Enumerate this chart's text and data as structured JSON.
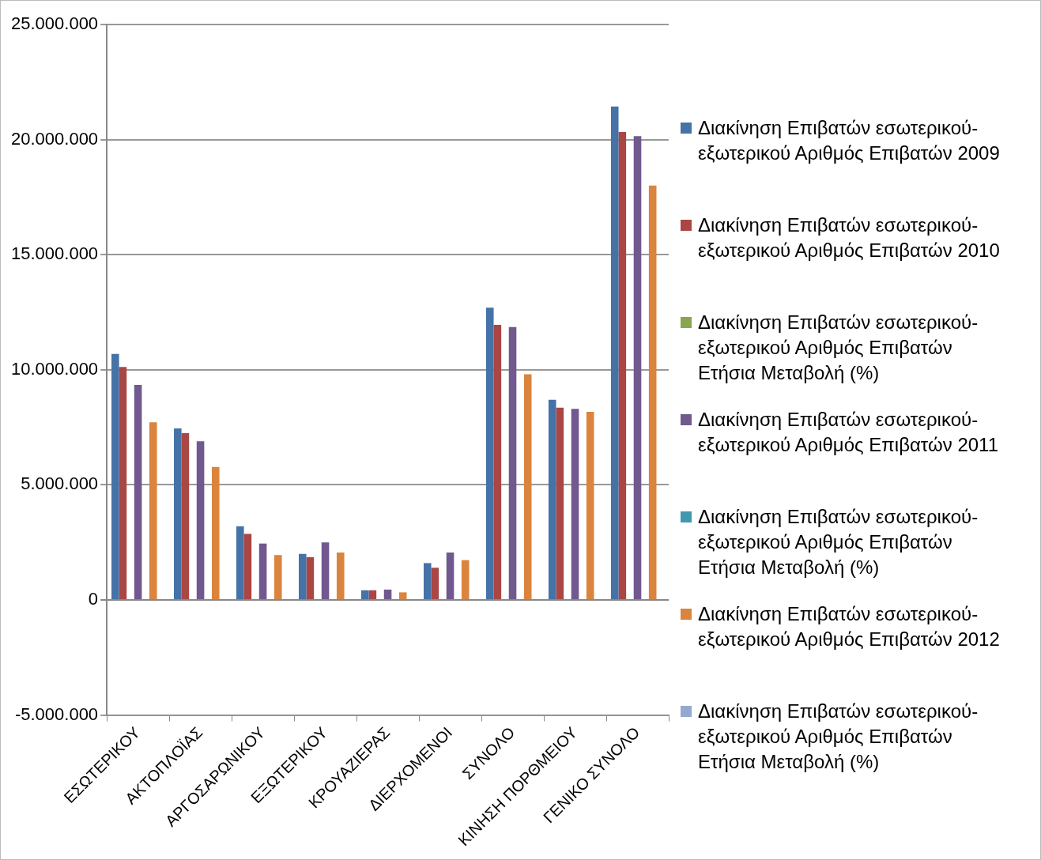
{
  "chart_data": {
    "type": "bar",
    "categories": [
      "ΕΣΩΤΕΡΙΚΟΥ",
      "ΑΚΤΟΠΛΟΪΑΣ",
      "ΑΡΓΟΣΑΡΩΝΙΚΟΥ",
      "ΕΞΩΤΕΡΙΚΟΥ",
      "ΚΡΟΥΑΖΙΕΡΑΣ",
      "ΔΙΕΡΧΟΜΕΝΟΙ",
      "ΣΥΝΟΛΟ",
      "ΚΙΝΗΣΗ ΠΟΡΘΜΕΙΟΥ",
      "ΓΕΝΙΚΟ ΣΥΝΟΛΟ"
    ],
    "series": [
      {
        "name": "Διακίνηση Επιβατών εσωτερικού-εξωτερικού Αριθμός Επιβατών 2009",
        "color": "#4572a7",
        "values": [
          10690000,
          7450000,
          3200000,
          2000000,
          420000,
          1600000,
          12700000,
          8700000,
          21440000
        ]
      },
      {
        "name": "Διακίνηση Επιβατών εσωτερικού-εξωτερικού Αριθμός Επιβατών 2010",
        "color": "#aa4643",
        "values": [
          10120000,
          7250000,
          2870000,
          1860000,
          420000,
          1400000,
          11950000,
          8350000,
          20330000
        ]
      },
      {
        "name": "Διακίνηση Επιβατών εσωτερικού-εξωτερικού Αριθμός Επιβατών Ετήσια Μεταβολή (%)",
        "color": "#89a54e",
        "values": [
          0,
          0,
          0,
          0,
          0,
          0,
          0,
          0,
          0
        ]
      },
      {
        "name": "Διακίνηση Επιβατών εσωτερικού-εξωτερικού Αριθμός Επιβατών 2011",
        "color": "#71588f",
        "values": [
          9340000,
          6890000,
          2450000,
          2500000,
          450000,
          2060000,
          11860000,
          8300000,
          20150000
        ]
      },
      {
        "name": "Διακίνηση Επιβατών εσωτερικού-εξωτερικού Αριθμός Επιβατών Ετήσια Μεταβολή (%)",
        "color": "#4198af",
        "values": [
          0,
          0,
          0,
          0,
          0,
          0,
          0,
          0,
          0
        ]
      },
      {
        "name": "Διακίνηση Επιβατών εσωτερικού-εξωτερικού Αριθμός Επιβατών 2012",
        "color": "#db843d",
        "values": [
          7720000,
          5780000,
          1950000,
          2060000,
          330000,
          1730000,
          9800000,
          8170000,
          18000000
        ]
      },
      {
        "name": "Διακίνηση Επιβατών εσωτερικού-εξωτερικού Αριθμός Επιβατών Ετήσια Μεταβολή (%)",
        "color": "#93a9cf",
        "values": [
          0,
          0,
          0,
          0,
          0,
          0,
          0,
          0,
          0
        ]
      }
    ],
    "ylim": [
      -5000000,
      25000000
    ],
    "yticks": [
      {
        "value": -5000000,
        "label": "-5.000.000"
      },
      {
        "value": 0,
        "label": "0"
      },
      {
        "value": 5000000,
        "label": "5.000.000"
      },
      {
        "value": 10000000,
        "label": "10.000.000"
      },
      {
        "value": 15000000,
        "label": "15.000.000"
      },
      {
        "value": 20000000,
        "label": "20.000.000"
      },
      {
        "value": 25000000,
        "label": "25.000.000"
      }
    ],
    "grid": "y",
    "legend": "right"
  }
}
